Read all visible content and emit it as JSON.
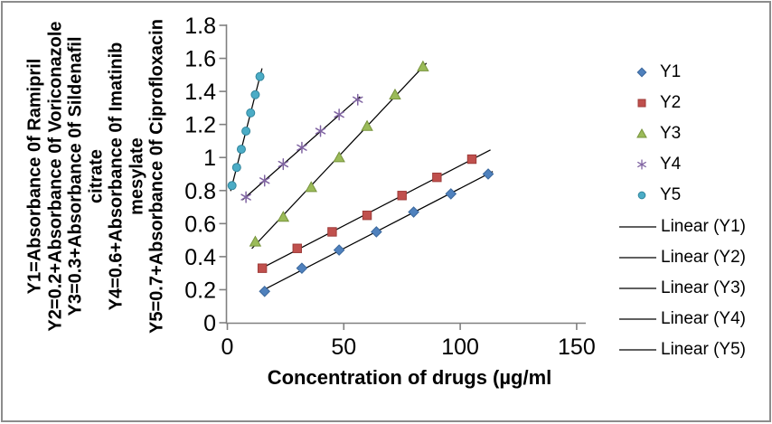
{
  "window": {
    "background": "#ffffff",
    "frame_border_color": "#8c8c8c"
  },
  "chart_data": {
    "type": "scatter",
    "title": "",
    "xlabel": "Concentration of drugs (µg/ml",
    "ylabel_lines": [
      "Y1=Absorbance 0f Ramipril",
      "Y2=0.2+Absorbance 0f Voriconazole",
      "Y3=0.3+Absorbance 0f Sildenafil",
      "citrate",
      "Y4=0.6+Absorbance 0f Imatinib",
      "mesylate",
      "Y5=0.7+Absorbance 0f Ciprofloxacin"
    ],
    "xlim": [
      0,
      150
    ],
    "ylim": [
      0,
      1.8
    ],
    "x_tick_values": [
      0,
      50,
      100,
      150
    ],
    "x_tick_labels": [
      "0",
      "50",
      "100",
      "150"
    ],
    "y_tick_values": [
      0,
      0.2,
      0.4,
      0.6,
      0.8,
      1,
      1.2,
      1.4,
      1.6,
      1.8
    ],
    "y_tick_labels": [
      "0",
      "0.2",
      "0.4",
      "0.6",
      "0.8",
      "1",
      "1.2",
      "1.4",
      "1.6",
      "1.8"
    ],
    "grid": false,
    "legend_position": "right",
    "axis_color": "#808080",
    "tick_label_color": "#000000",
    "trendline_color": "#000000",
    "series": [
      {
        "name": "Y1",
        "marker": "diamond",
        "color": "#4F81BD",
        "edge": "#3A679C",
        "x": [
          16,
          32,
          48,
          64,
          80,
          96,
          112
        ],
        "y": [
          0.19,
          0.33,
          0.44,
          0.55,
          0.67,
          0.78,
          0.9
        ],
        "trend_x": [
          14.5,
          114
        ]
      },
      {
        "name": "Y2",
        "marker": "square",
        "color": "#C0504D",
        "edge": "#9E3B39",
        "x": [
          15,
          30,
          45,
          60,
          75,
          90,
          105
        ],
        "y": [
          0.33,
          0.45,
          0.55,
          0.65,
          0.77,
          0.88,
          0.99
        ],
        "trend_x": [
          13.5,
          113
        ]
      },
      {
        "name": "Y3",
        "marker": "triangle",
        "color": "#9BBB59",
        "edge": "#77933C",
        "x": [
          12,
          24,
          36,
          48,
          60,
          72,
          84
        ],
        "y": [
          0.49,
          0.64,
          0.82,
          1.0,
          1.19,
          1.38,
          1.55
        ],
        "trend_x": [
          10.5,
          85.5
        ]
      },
      {
        "name": "Y4",
        "marker": "asterisk",
        "color": "#8064A2",
        "edge": "#8064A2",
        "x": [
          8,
          16,
          24,
          32,
          40,
          48,
          56
        ],
        "y": [
          0.76,
          0.86,
          0.96,
          1.06,
          1.16,
          1.26,
          1.35
        ],
        "trend_x": [
          6.5,
          57
        ]
      },
      {
        "name": "Y5",
        "marker": "circle",
        "color": "#4BACC6",
        "edge": "#31859C",
        "x": [
          2,
          4,
          6,
          8,
          10,
          12,
          14
        ],
        "y": [
          0.83,
          0.94,
          1.05,
          1.16,
          1.27,
          1.38,
          1.49
        ],
        "trend_x": [
          1.4,
          14.9
        ]
      }
    ],
    "legend": {
      "marker_entries": [
        "Y1",
        "Y2",
        "Y3",
        "Y4",
        "Y5"
      ],
      "line_entries": [
        "Linear (Y1)",
        "Linear (Y2)",
        "Linear (Y3)",
        "Linear (Y4)",
        "Linear (Y5)"
      ]
    }
  }
}
